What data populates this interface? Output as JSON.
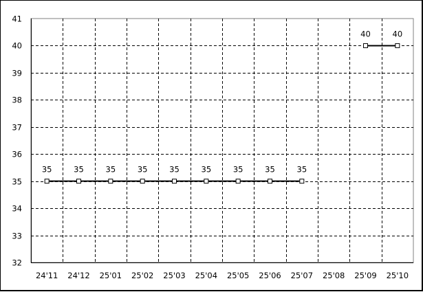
{
  "chart_data": {
    "type": "line",
    "title": "",
    "xlabel": "",
    "ylabel": "",
    "categories": [
      "24'11",
      "24'12",
      "25'01",
      "25'02",
      "25'03",
      "25'04",
      "25'05",
      "25'06",
      "25'07",
      "25'08",
      "25'09",
      "25'10"
    ],
    "series": [
      {
        "values": [
          35,
          35,
          35,
          35,
          35,
          35,
          35,
          35,
          35,
          null,
          40,
          40
        ]
      }
    ],
    "data_labels": true,
    "ylim": [
      32,
      41
    ],
    "yticks": [
      32,
      33,
      34,
      35,
      36,
      37,
      38,
      39,
      40,
      41
    ],
    "grid": true,
    "grid_style": "dashed",
    "legend": "none",
    "marker": "square",
    "line_color": "#000000"
  }
}
